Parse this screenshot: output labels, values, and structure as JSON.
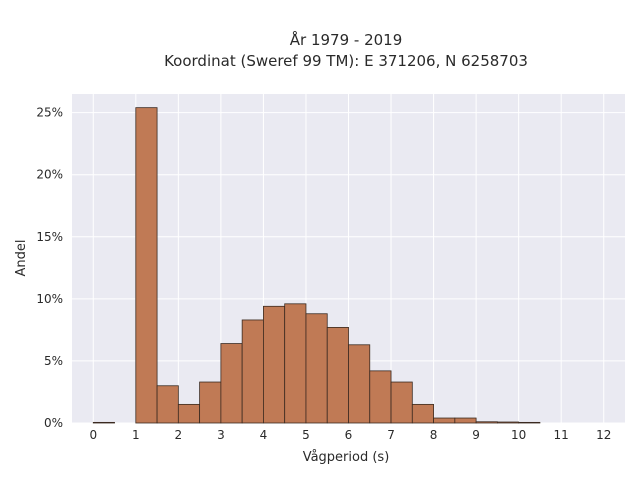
{
  "chart_data": {
    "type": "bar",
    "title_lines": [
      "År 1979 - 2019",
      "Koordinat (Sweref 99 TM): E 371206, N 6258703"
    ],
    "xlabel": "Vågperiod (s)",
    "ylabel": "Andel",
    "xlim": [
      -0.5,
      12.5
    ],
    "ylim": [
      0,
      0.265
    ],
    "x_ticks": [
      0,
      1,
      2,
      3,
      4,
      5,
      6,
      7,
      8,
      9,
      10,
      11,
      12
    ],
    "y_ticks": [
      0,
      0.05,
      0.1,
      0.15,
      0.2,
      0.25
    ],
    "y_tick_labels": [
      "0%",
      "5%",
      "10%",
      "15%",
      "20%",
      "25%"
    ],
    "bin_width": 0.5,
    "bins": [
      {
        "x0": 0.0,
        "value": 0.0005
      },
      {
        "x0": 0.5,
        "value": 0.0
      },
      {
        "x0": 1.0,
        "value": 0.254
      },
      {
        "x0": 1.5,
        "value": 0.03
      },
      {
        "x0": 2.0,
        "value": 0.015
      },
      {
        "x0": 2.5,
        "value": 0.033
      },
      {
        "x0": 3.0,
        "value": 0.064
      },
      {
        "x0": 3.5,
        "value": 0.083
      },
      {
        "x0": 4.0,
        "value": 0.094
      },
      {
        "x0": 4.5,
        "value": 0.096
      },
      {
        "x0": 5.0,
        "value": 0.088
      },
      {
        "x0": 5.5,
        "value": 0.077
      },
      {
        "x0": 6.0,
        "value": 0.063
      },
      {
        "x0": 6.5,
        "value": 0.042
      },
      {
        "x0": 7.0,
        "value": 0.033
      },
      {
        "x0": 7.5,
        "value": 0.015
      },
      {
        "x0": 8.0,
        "value": 0.004
      },
      {
        "x0": 8.5,
        "value": 0.004
      },
      {
        "x0": 9.0,
        "value": 0.001
      },
      {
        "x0": 9.5,
        "value": 0.0008
      },
      {
        "x0": 10.0,
        "value": 0.0005
      }
    ],
    "grid": true,
    "legend": false,
    "colors": {
      "bar_fill": "#c07a55",
      "bar_edge": "#3b2a20",
      "plot_background": "#eaeaf2",
      "grid": "#ffffff"
    }
  }
}
